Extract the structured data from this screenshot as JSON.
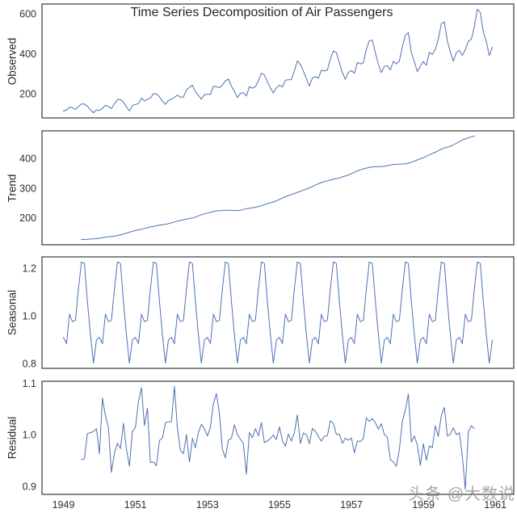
{
  "figure": {
    "title": "Time Series Decomposition of Air Passengers",
    "watermark": "头条 @大数说"
  },
  "style": {
    "line_color": "#4c72b0",
    "spine_color": "#3a3a3a",
    "tick_color": "#2e2e2e",
    "background": "#ffffff",
    "watermark_color": "#909090"
  },
  "chart_data": {
    "type": "line",
    "title": "Time Series Decomposition of Air Passengers",
    "description": "Multiplicative seasonal decomposition (statsmodels-style, centered 12-month moving average) of the monthly AirPassengers series, Jan 1949 - Dec 1960. Four stacked panels sharing the x axis; only the bottom panel shows x tick labels. No gridlines.",
    "decomposition_model": "multiplicative",
    "x_start_year": 1949,
    "points_per_year": 12,
    "x_ticks": [
      1949,
      1951,
      1953,
      1955,
      1957,
      1959,
      1961
    ],
    "axis_margin_fraction": 0.05,
    "panels": [
      {
        "name": "observed",
        "ylabel": "Observed",
        "yticks": [
          200,
          400,
          600
        ],
        "decimals": 0,
        "ylim_approx": [
          78,
          648
        ]
      },
      {
        "name": "trend",
        "ylabel": "Trend",
        "yticks": [
          200,
          300,
          400
        ],
        "decimals": 0,
        "ylim_approx": [
          109,
          493
        ]
      },
      {
        "name": "seasonal",
        "ylabel": "Seasonal",
        "yticks": [
          0.8,
          1.0,
          1.2
        ],
        "decimals": 1,
        "ylim_approx": [
          0.78,
          1.25
        ]
      },
      {
        "name": "residual",
        "ylabel": "Residual",
        "yticks": [
          0.9,
          1.0,
          1.1
        ],
        "decimals": 1,
        "ylim_approx": [
          0.89,
          1.13
        ]
      }
    ],
    "observed": [
      112,
      118,
      132,
      129,
      121,
      135,
      148,
      148,
      136,
      119,
      104,
      118,
      115,
      126,
      141,
      135,
      125,
      149,
      170,
      170,
      158,
      133,
      114,
      140,
      145,
      150,
      178,
      163,
      172,
      178,
      199,
      199,
      184,
      162,
      146,
      166,
      171,
      180,
      193,
      181,
      183,
      218,
      230,
      242,
      209,
      191,
      172,
      194,
      196,
      196,
      236,
      235,
      229,
      243,
      264,
      272,
      237,
      211,
      180,
      201,
      204,
      188,
      235,
      227,
      234,
      264,
      302,
      293,
      259,
      229,
      203,
      229,
      242,
      233,
      267,
      269,
      270,
      315,
      364,
      347,
      312,
      274,
      237,
      278,
      284,
      277,
      317,
      313,
      318,
      374,
      413,
      405,
      355,
      306,
      271,
      306,
      315,
      301,
      356,
      348,
      355,
      422,
      465,
      467,
      404,
      347,
      305,
      336,
      340,
      318,
      362,
      348,
      363,
      435,
      491,
      505,
      404,
      359,
      310,
      337,
      360,
      342,
      406,
      396,
      420,
      472,
      548,
      559,
      463,
      407,
      362,
      405,
      417,
      391,
      419,
      461,
      472,
      535,
      622,
      606,
      508,
      461,
      390,
      432
    ],
    "trend_endpoints": {
      "first_value": 126.79,
      "first_month": "1949-07",
      "last_value": 475.04,
      "last_month": "1960-06"
    },
    "seasonal_indices_approx": [
      0.91,
      0.884,
      1.007,
      0.976,
      0.981,
      1.113,
      1.226,
      1.22,
      1.06,
      0.922,
      0.801,
      0.899
    ]
  }
}
